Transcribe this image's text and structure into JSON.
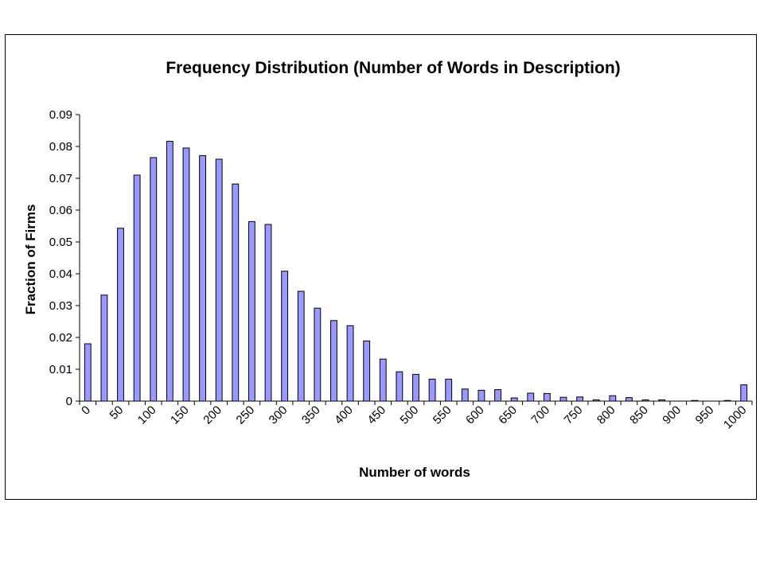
{
  "chart_data": {
    "type": "bar",
    "title": "Frequency Distribution (Number of Words in Description)",
    "xlabel": "Number of words",
    "ylabel": "Fraction of Firms",
    "ylim": [
      0,
      0.09
    ],
    "yticks": [
      "0",
      "0.01",
      "0.02",
      "0.03",
      "0.04",
      "0.05",
      "0.06",
      "0.07",
      "0.08",
      "0.09"
    ],
    "xtick_labels": [
      "0",
      "50",
      "100",
      "150",
      "200",
      "250",
      "300",
      "350",
      "400",
      "450",
      "500",
      "550",
      "600",
      "650",
      "700",
      "750",
      "800",
      "850",
      "900",
      "950",
      "1000"
    ],
    "categories": [
      0,
      25,
      50,
      75,
      100,
      125,
      150,
      175,
      200,
      225,
      250,
      275,
      300,
      325,
      350,
      375,
      400,
      425,
      450,
      475,
      500,
      525,
      550,
      575,
      600,
      625,
      650,
      675,
      700,
      725,
      750,
      775,
      800,
      825,
      850,
      875,
      900,
      925,
      950,
      975,
      1000
    ],
    "values": [
      0.018,
      0.0333,
      0.0543,
      0.071,
      0.0765,
      0.0816,
      0.0795,
      0.0771,
      0.076,
      0.0682,
      0.0564,
      0.0555,
      0.0408,
      0.0345,
      0.0292,
      0.0253,
      0.0237,
      0.0189,
      0.0132,
      0.0092,
      0.0084,
      0.0069,
      0.0069,
      0.0038,
      0.0034,
      0.0036,
      0.001,
      0.0025,
      0.0024,
      0.0012,
      0.0013,
      0.0004,
      0.0017,
      0.0011,
      0.0004,
      0.0004,
      0.0,
      0.0002,
      0.0,
      0.0002,
      0.0051
    ],
    "bar_color": "#9999ff",
    "bar_edge_color": "#000000",
    "grid": false,
    "legend": false
  }
}
